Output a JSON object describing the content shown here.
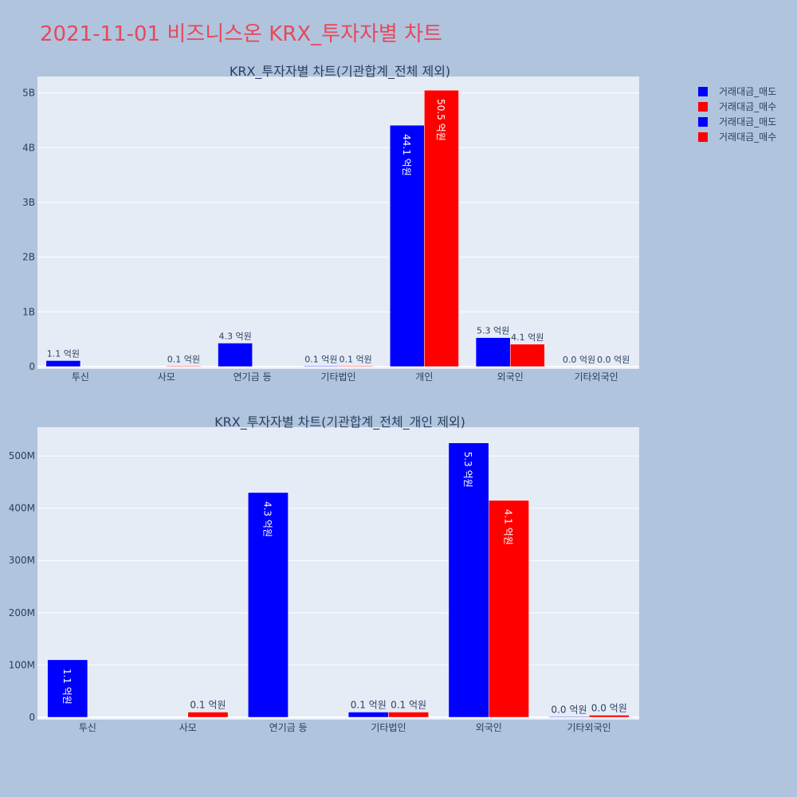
{
  "page_title": "2021-11-01 비즈니스온 KRX_투자자별 차트",
  "colors": {
    "sell": "#0000ff",
    "buy": "#ff0000",
    "plot_bg": "#e5ecf6",
    "page_bg": "#b0c4de",
    "title": "#e8485a"
  },
  "legend": [
    "거래대금_매도",
    "거래대금_매수",
    "거래대금_매도",
    "거래대금_매수"
  ],
  "chart_data": [
    {
      "type": "bar",
      "title": "KRX_투자자별 차트(기관합계_전체 제외)",
      "categories": [
        "투신",
        "사모",
        "연기금 등",
        "기타법인",
        "개인",
        "외국인",
        "기타외국인"
      ],
      "yticks": [
        0,
        1000000000,
        2000000000,
        3000000000,
        4000000000,
        5000000000
      ],
      "ytick_labels": [
        "0",
        "1B",
        "2B",
        "3B",
        "4B",
        "5B"
      ],
      "ylim": [
        0,
        5300000000
      ],
      "series": [
        {
          "name": "거래대금_매도",
          "values": [
            110000000,
            0,
            430000000,
            10000000,
            4410000000,
            530000000,
            0
          ],
          "labels": [
            "1.1 억원",
            "",
            "4.3 억원",
            "0.1 억원",
            "44.1 억원",
            "5.3 억원",
            "0.0 억원"
          ]
        },
        {
          "name": "거래대금_매수",
          "values": [
            0,
            10000000,
            0,
            10000000,
            5050000000,
            410000000,
            0
          ],
          "labels": [
            "",
            "0.1 억원",
            "",
            "0.1 억원",
            "50.5 억원",
            "4.1 억원",
            "0.0 억원"
          ]
        }
      ]
    },
    {
      "type": "bar",
      "title": "KRX_투자자별 차트(기관합계_전체_개인 제외)",
      "categories": [
        "투신",
        "사모",
        "연기금 등",
        "기타법인",
        "외국인",
        "기타외국인"
      ],
      "yticks": [
        0,
        100000000,
        200000000,
        300000000,
        400000000,
        500000000
      ],
      "ytick_labels": [
        "0",
        "100M",
        "200M",
        "300M",
        "400M",
        "500M"
      ],
      "ylim": [
        0,
        555000000
      ],
      "series": [
        {
          "name": "거래대금_매도",
          "values": [
            110000000,
            0,
            430000000,
            10000000,
            525000000,
            1000000
          ],
          "labels": [
            "1.1 억원",
            "",
            "4.3 억원",
            "0.1 억원",
            "5.3 억원",
            "0.0 억원"
          ]
        },
        {
          "name": "거래대금_매수",
          "values": [
            0,
            10000000,
            0,
            10000000,
            415000000,
            4000000
          ],
          "labels": [
            "",
            "0.1 억원",
            "",
            "0.1 억원",
            "4.1 억원",
            "0.0 억원"
          ]
        }
      ]
    }
  ]
}
